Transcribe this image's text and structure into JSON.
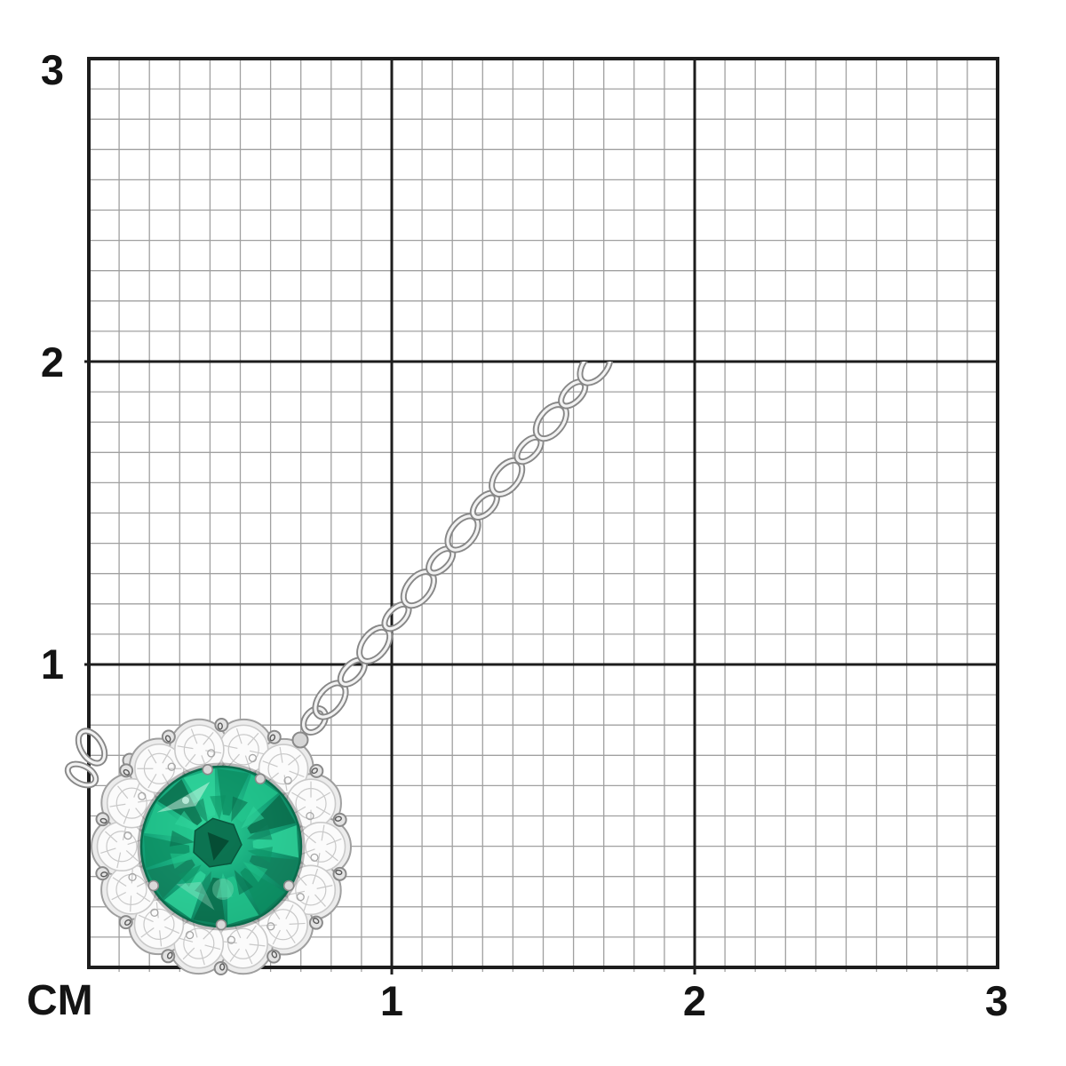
{
  "ruler": {
    "unit_label": "CM",
    "x_axis_labels": [
      "1",
      "2",
      "3"
    ],
    "y_axis_labels": [
      "3",
      "2",
      "1"
    ],
    "major_divisions": 3,
    "minor_per_major": 10
  },
  "colors": {
    "background": "#ffffff",
    "grid_minor": "#a0a0a0",
    "grid_major": "#1d1d1d",
    "label_text": "#141414",
    "chain_dark": "#878787",
    "chain_light": "#f2f2f2",
    "metal_fill": "#ececec",
    "metal_outline": "#9f9f9f",
    "bead_fill": "#e3e3e3",
    "bead_outline": "#8a8a8a",
    "diamond_fill": "#fbfbfb",
    "diamond_facet": "#c9c9c9",
    "shadow_ring": "#3c3c3c",
    "emerald_bright": "#2fd79a",
    "emerald_base": "#13a177",
    "emerald_dark": "#0a6a4a",
    "emerald_rim": "#0b6b4c",
    "emerald_facets": [
      "#0d8f63",
      "#23c68d",
      "#0a6a4a",
      "#31d69c",
      "#117e5b"
    ]
  }
}
